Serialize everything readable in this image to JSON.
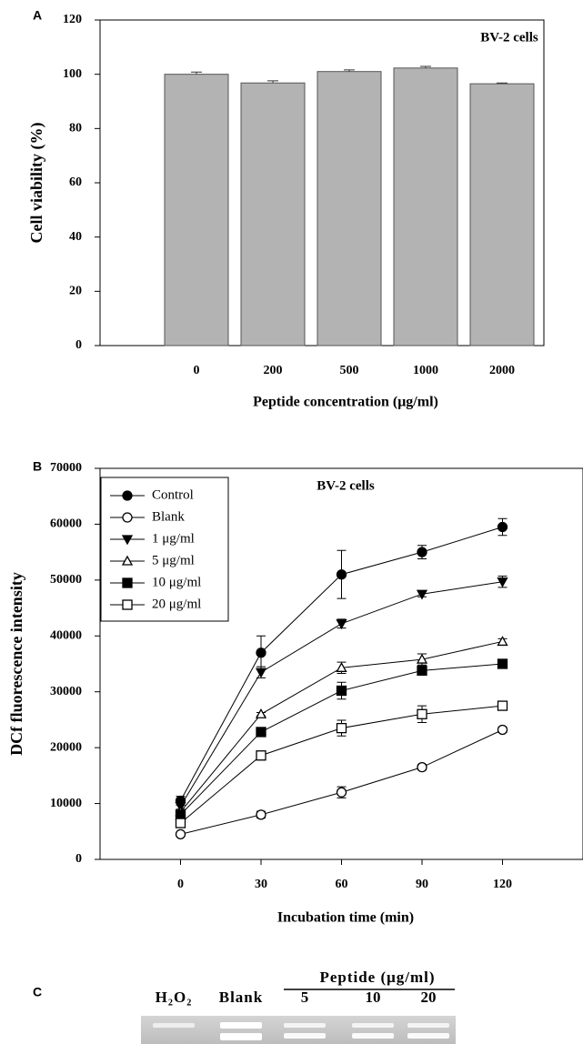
{
  "chart_data": [
    {
      "type": "bar",
      "panel_label": "A",
      "title": "BV-2 cells",
      "x_label": "Peptide concentration (μg/ml)",
      "y_label": "Cell viability (%)",
      "categories": [
        "0",
        "200",
        "500",
        "1000",
        "2000"
      ],
      "values": [
        100,
        96.8,
        101,
        102.3,
        96.5
      ],
      "errors": [
        0.8,
        0.8,
        0.6,
        0.6,
        0.3
      ],
      "color": "#b3b3b3",
      "ylim": [
        0,
        120
      ],
      "yticks": [
        0,
        20,
        40,
        60,
        80,
        100,
        120
      ]
    },
    {
      "type": "line",
      "panel_label": "B",
      "title": "BV-2 cells",
      "x_label": "Incubation time (min)",
      "y_label": "DCf fluorescence intensity",
      "x": [
        0,
        30,
        60,
        90,
        120
      ],
      "xlim": [
        -30,
        150
      ],
      "xticks": [
        0,
        30,
        60,
        90,
        120
      ],
      "ylim": [
        0,
        70000
      ],
      "yticks": [
        0,
        10000,
        20000,
        30000,
        40000,
        50000,
        60000,
        70000
      ],
      "legend": "upper left",
      "series": [
        {
          "name": "Control",
          "color": "#000000",
          "marker": "circle",
          "filled": true,
          "values": [
            10500,
            37000,
            51000,
            55000,
            59500
          ],
          "errors": [
            800,
            3000,
            4300,
            1200,
            1500
          ]
        },
        {
          "name": "Blank",
          "color": "#000000",
          "marker": "circle",
          "filled": false,
          "values": [
            4500,
            8000,
            12000,
            16500,
            23200
          ],
          "errors": [
            300,
            600,
            1000,
            500,
            500
          ]
        },
        {
          "name": "1 μg/ml",
          "color": "#000000",
          "marker": "triangle-down",
          "filled": true,
          "values": [
            9500,
            33500,
            42200,
            47500,
            49700
          ],
          "errors": [
            500,
            1000,
            800,
            500,
            1000
          ]
        },
        {
          "name": "5 μg/ml",
          "color": "#000000",
          "marker": "triangle-up",
          "filled": false,
          "values": [
            8500,
            26000,
            34300,
            35800,
            39000
          ],
          "errors": [
            300,
            300,
            1000,
            1000,
            500
          ]
        },
        {
          "name": "10 μg/ml",
          "color": "#000000",
          "marker": "square",
          "filled": true,
          "values": [
            8000,
            22800,
            30200,
            33800,
            35000
          ],
          "errors": [
            500,
            500,
            1500,
            500,
            500
          ]
        },
        {
          "name": "20 μg/ml",
          "color": "#000000",
          "marker": "square",
          "filled": false,
          "values": [
            6500,
            18600,
            23500,
            26000,
            27500
          ],
          "errors": [
            500,
            800,
            1400,
            1500,
            600
          ]
        }
      ]
    }
  ],
  "gel": {
    "panel_label": "C",
    "lanes": [
      "H₂O₂",
      "Blank",
      "5",
      "10",
      "20"
    ],
    "group_label": "Peptide (μg/ml)"
  }
}
